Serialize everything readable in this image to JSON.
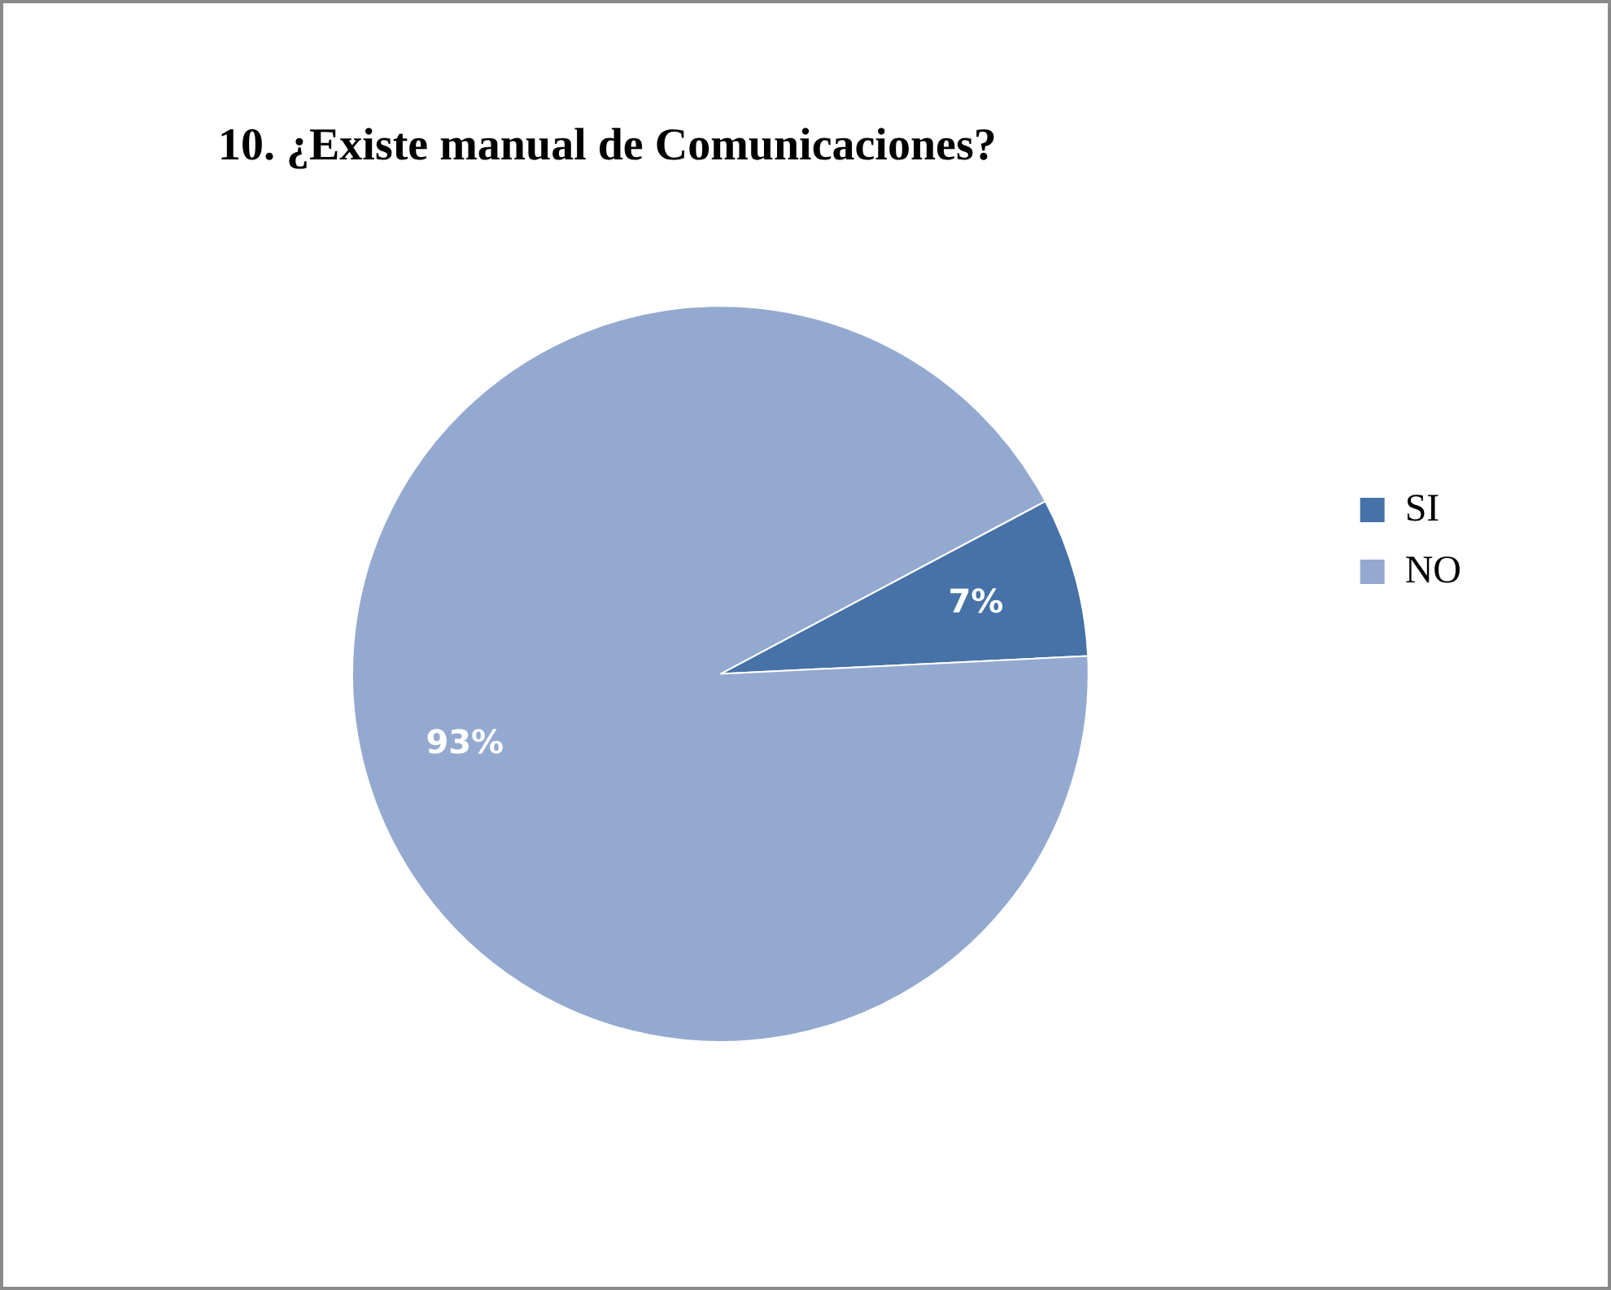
{
  "chart_data": {
    "type": "pie",
    "title": "10. ¿Existe manual de Comunicaciones?",
    "categories": [
      "SI",
      "NO"
    ],
    "values": [
      7,
      93
    ],
    "colors": [
      "#4672a8",
      "#94a9cf"
    ],
    "value_labels": [
      "7%",
      "93%"
    ],
    "legend": "right"
  }
}
